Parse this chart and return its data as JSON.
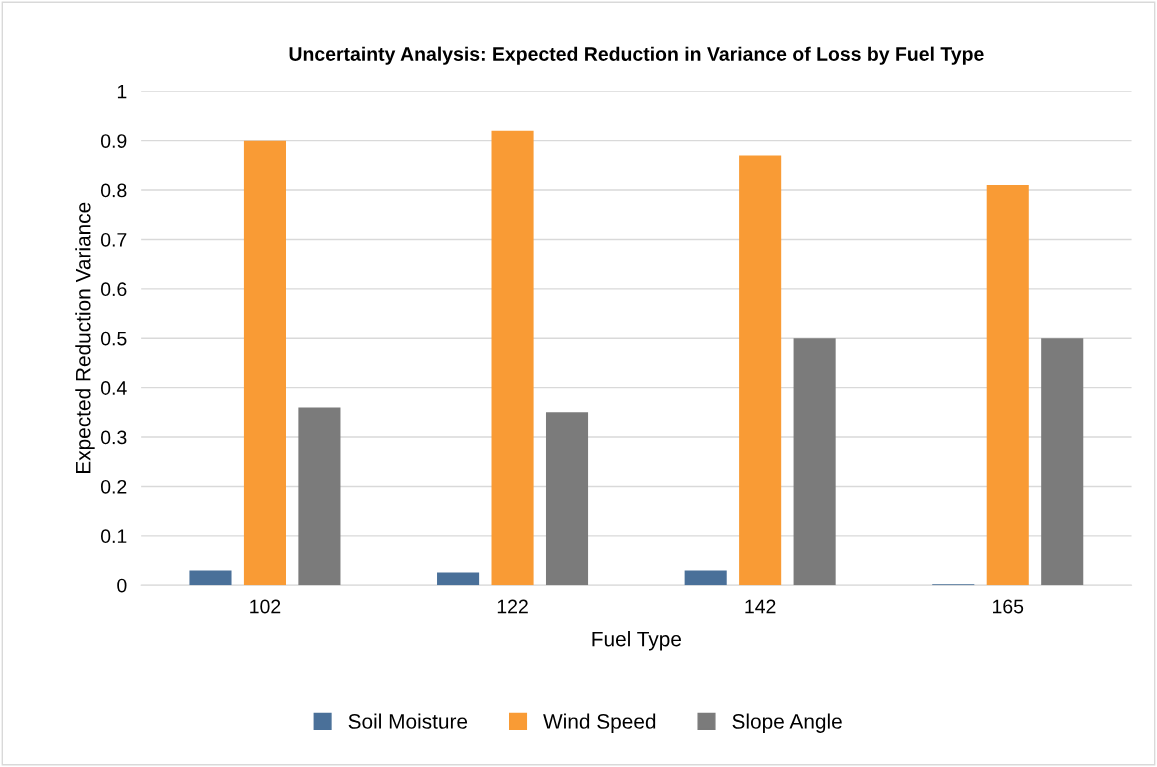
{
  "chart_data": {
    "type": "bar",
    "title": "Uncertainty Analysis: Expected Reduction in Variance of Loss by Fuel Type",
    "xlabel": "Fuel Type",
    "ylabel": "Expected Reduction Variance",
    "categories": [
      "102",
      "122",
      "142",
      "165"
    ],
    "series": [
      {
        "name": "Soil Moisture",
        "color": "#4a7099",
        "values": [
          0.03,
          0.026,
          0.03,
          0.002
        ]
      },
      {
        "name": "Wind Speed",
        "color": "#f99b35",
        "values": [
          0.9,
          0.92,
          0.87,
          0.81
        ]
      },
      {
        "name": "Slope Angle",
        "color": "#7b7b7b",
        "values": [
          0.36,
          0.35,
          0.5,
          0.5
        ]
      }
    ],
    "ylim": [
      0,
      1
    ],
    "yticks": [
      0,
      0.1,
      0.2,
      0.3,
      0.4,
      0.5,
      0.6,
      0.7,
      0.8,
      0.9,
      1
    ],
    "grid": "y",
    "legend": "bottom"
  }
}
